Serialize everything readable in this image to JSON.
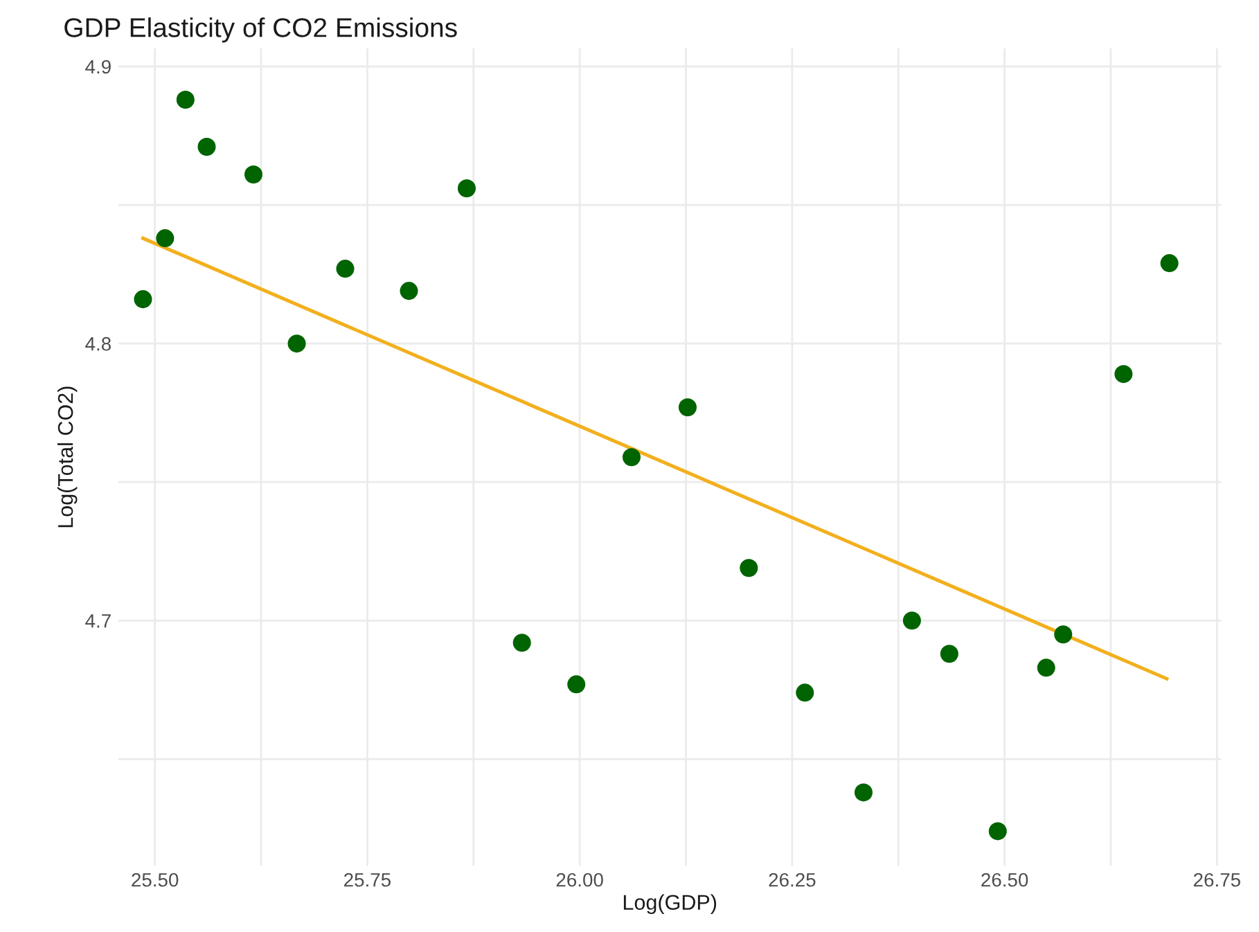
{
  "chart_data": {
    "type": "scatter",
    "title": "GDP Elasticity of CO2 Emissions",
    "xlabel": "Log(GDP)",
    "ylabel": "Log(Total CO2)",
    "xlim": [
      25.457,
      26.755
    ],
    "ylim": [
      4.6115,
      4.9065
    ],
    "xticks": [
      {
        "value": 25.5,
        "label": "25.50"
      },
      {
        "value": 25.625,
        "label": null
      },
      {
        "value": 25.75,
        "label": "25.75"
      },
      {
        "value": 25.875,
        "label": null
      },
      {
        "value": 26.0,
        "label": "26.00"
      },
      {
        "value": 26.125,
        "label": null
      },
      {
        "value": 26.25,
        "label": "26.25"
      },
      {
        "value": 26.375,
        "label": null
      },
      {
        "value": 26.5,
        "label": "26.50"
      },
      {
        "value": 26.625,
        "label": null
      },
      {
        "value": 26.75,
        "label": "26.75"
      }
    ],
    "yticks": [
      {
        "value": 4.65,
        "label": null
      },
      4.7,
      {
        "value": 4.75,
        "label": null
      },
      4.8,
      {
        "value": 4.85,
        "label": null
      },
      4.9
    ],
    "grid": true,
    "marker": "circle",
    "series": [
      {
        "color": "#006400",
        "x": [
          25.486,
          25.512,
          25.536,
          25.561,
          25.616,
          25.667,
          25.724,
          25.799,
          25.867,
          25.932,
          25.996,
          26.061,
          26.127,
          26.199,
          26.265,
          26.334,
          26.391,
          26.435,
          26.492,
          26.549,
          26.569,
          26.64,
          26.694
        ],
        "values": [
          4.816,
          4.838,
          4.888,
          4.871,
          4.861,
          4.8,
          4.827,
          4.819,
          4.856,
          4.692,
          4.677,
          4.759,
          4.777,
          4.719,
          4.674,
          4.638,
          4.7,
          4.688,
          4.624,
          4.683,
          4.695,
          4.789,
          4.829
        ]
      },
      {
        "type": "line",
        "color": "#f2b01e",
        "marker": "none",
        "x": [
          25.486,
          26.691
        ],
        "values": [
          4.838,
          4.679
        ]
      }
    ]
  }
}
